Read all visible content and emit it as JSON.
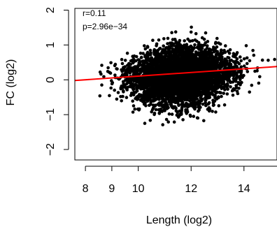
{
  "chart_data": {
    "type": "scatter",
    "xlabel": "Length (log2)",
    "ylabel": "FC (log2)",
    "xlim": [
      7.6,
      15.25
    ],
    "ylim": [
      -2.3,
      2.05
    ],
    "x_ticks": [
      8,
      9,
      10,
      12,
      14
    ],
    "y_ticks": [
      -2,
      -1,
      0,
      1,
      2
    ],
    "grid": false,
    "annotations": [
      "r=0.11",
      "p=2.96e−34"
    ],
    "point_color": "#000000",
    "regression_line": {
      "color": "#ff0000",
      "x": [
        7.6,
        15.25
      ],
      "y": [
        -0.02,
        0.38
      ]
    },
    "cloud": {
      "center": [
        11.6,
        0.1
      ],
      "sd": [
        0.95,
        0.45
      ]
    }
  }
}
